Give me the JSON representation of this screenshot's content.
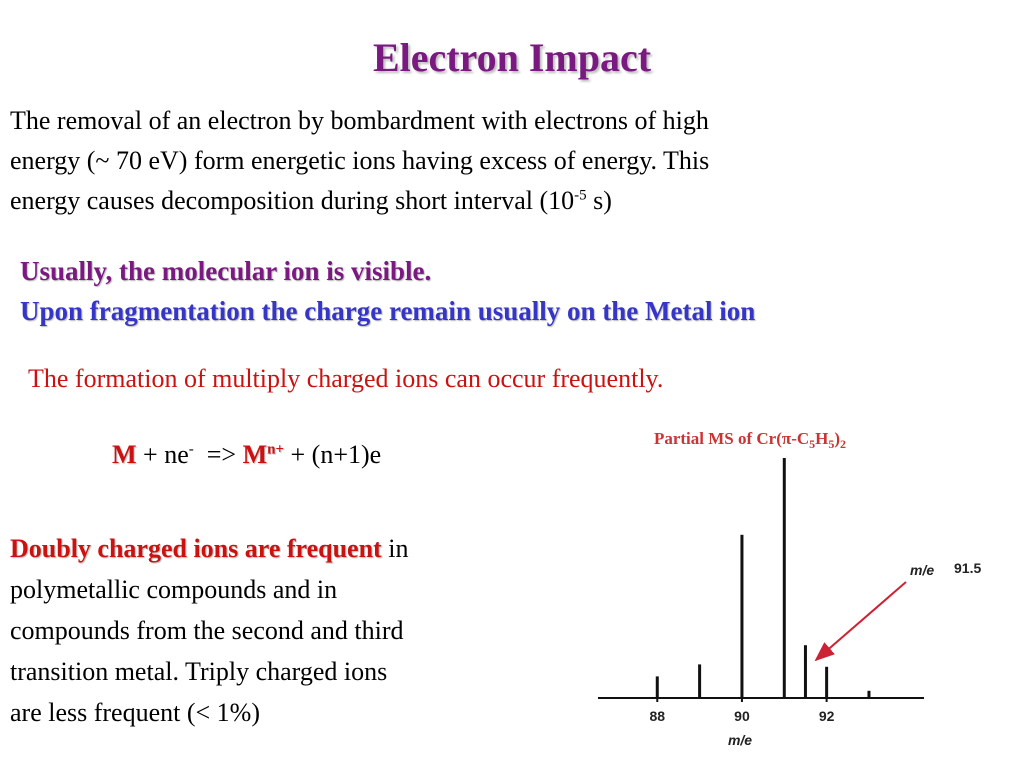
{
  "title": "Electron Impact",
  "intro": {
    "line1": "The removal of an electron by bombardment with electrons of high",
    "line2": "energy (~ 70 eV) form energetic ions having excess of energy. This",
    "line3_start": "energy causes decomposition during short interval (10",
    "line3_sup": "-5",
    "line3_end": " s)"
  },
  "highlights": [
    "Usually, the molecular ion is visible.",
    "Upon fragmentation the charge remain usually on the Metal ion"
  ],
  "note": "The formation of multiply charged ions can occur frequently.",
  "equation": {
    "reactant": "M",
    "plus_electrons": " + ne",
    "electron_charge": "-",
    "arrow": "  => ",
    "product": "M",
    "product_charge": "n+",
    "products_rest": " + (n+1)e"
  },
  "paragraph": {
    "emphasis": "Doubly charged ions are frequent",
    "first_rest": " in",
    "lines": [
      "polymetallic compounds and in",
      "compounds from the second and third",
      "transition metal. Triply charged ions",
      "are less frequent (< 1%)"
    ]
  },
  "chart_data": {
    "type": "bar",
    "title_parts": [
      "Partial MS of Cr(π-C",
      "5",
      "H",
      "5",
      ")",
      "2"
    ],
    "x": [
      88,
      89,
      90,
      91,
      91.5,
      92,
      93
    ],
    "values": [
      9,
      14,
      68,
      100,
      22,
      13,
      3
    ],
    "xlim": [
      86.6,
      94.3
    ],
    "ylim": [
      0,
      100
    ],
    "xticks": [
      88,
      90,
      92
    ],
    "x_label": "m/e",
    "annotation": {
      "label": "m/e",
      "value": "91.5"
    },
    "color": "#111111"
  }
}
